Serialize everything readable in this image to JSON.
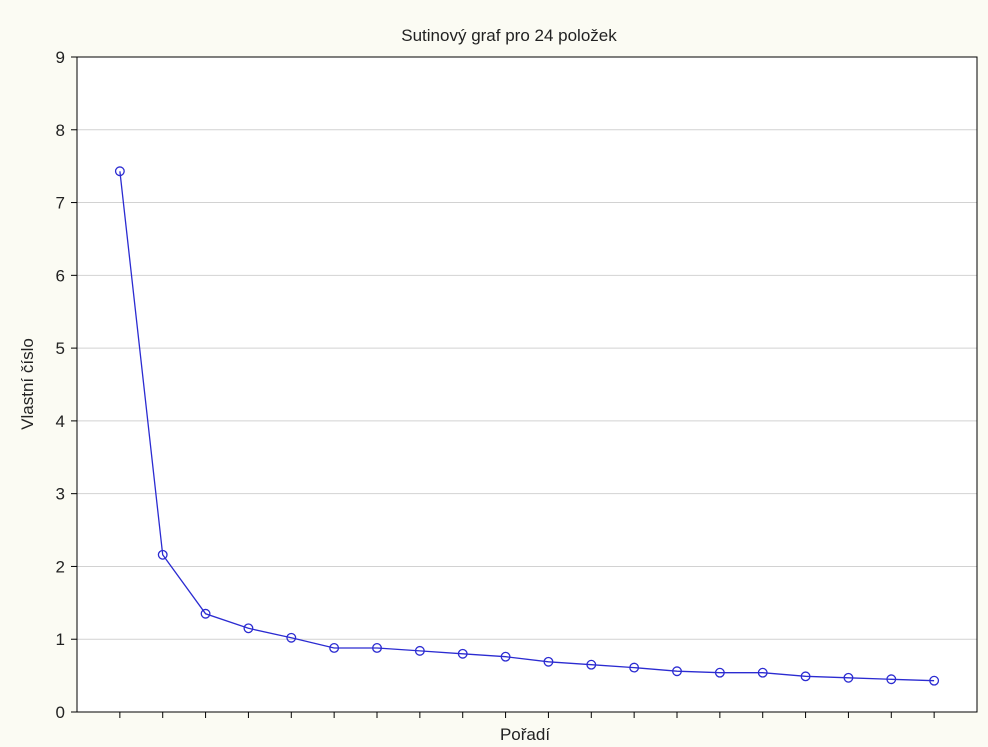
{
  "colors": {
    "background": "#fbfbf3",
    "plot_background": "#ffffff",
    "series": "#2b2bd1",
    "grid": "#d2d2d2",
    "axis": "#000000",
    "text": "#222222"
  },
  "chart_data": {
    "type": "line",
    "title": "Sutinový graf pro 24 položek",
    "xlabel": "Pořadí",
    "ylabel": "Vlastní číslo",
    "ylim": [
      0,
      9
    ],
    "yticks": [
      0,
      1,
      2,
      3,
      4,
      5,
      6,
      7,
      8,
      9
    ],
    "xlim": [
      0,
      21
    ],
    "x_tick_labels_shown": false,
    "grid": "horizontal",
    "legend": "none",
    "marker": "open-circle",
    "series": [
      {
        "x": [
          1,
          2,
          3,
          4,
          5,
          6,
          7,
          8,
          9,
          10,
          11,
          12,
          13,
          14,
          15,
          16,
          17,
          18,
          19,
          20
        ],
        "values": [
          7.43,
          2.16,
          1.35,
          1.15,
          1.02,
          0.88,
          0.88,
          0.84,
          0.8,
          0.76,
          0.69,
          0.65,
          0.61,
          0.56,
          0.54,
          0.54,
          0.49,
          0.47,
          0.45,
          0.43
        ]
      }
    ]
  }
}
